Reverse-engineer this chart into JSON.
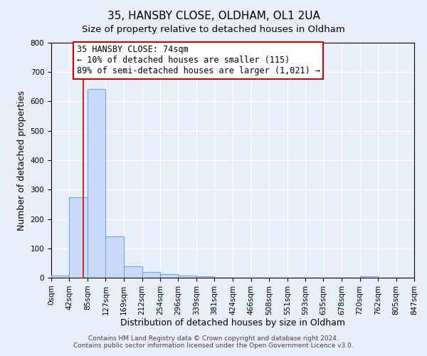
{
  "title": "35, HANSBY CLOSE, OLDHAM, OL1 2UA",
  "subtitle": "Size of property relative to detached houses in Oldham",
  "xlabel": "Distribution of detached houses by size in Oldham",
  "ylabel": "Number of detached properties",
  "bar_edges": [
    0,
    42,
    85,
    127,
    169,
    212,
    254,
    296,
    339,
    381,
    424,
    466,
    508,
    551,
    593,
    635,
    678,
    720,
    762,
    805,
    847
  ],
  "bar_heights": [
    8,
    275,
    642,
    140,
    38,
    20,
    12,
    8,
    5,
    0,
    0,
    0,
    0,
    0,
    0,
    0,
    0,
    4,
    0,
    0
  ],
  "bar_color": "#c9daf8",
  "bar_edge_color": "#6fa8dc",
  "vline_x": 74,
  "vline_color": "#cc0000",
  "annotation_line1": "35 HANSBY CLOSE: 74sqm",
  "annotation_line2": "← 10% of detached houses are smaller (115)",
  "annotation_line3": "89% of semi-detached houses are larger (1,021) →",
  "annotation_box_color": "#ffffff",
  "annotation_box_edge_color": "#cc0000",
  "ylim": [
    0,
    800
  ],
  "yticks": [
    0,
    100,
    200,
    300,
    400,
    500,
    600,
    700,
    800
  ],
  "background_color": "#e8eef7",
  "plot_bg_color": "#e8eef7",
  "footer_line1": "Contains HM Land Registry data © Crown copyright and database right 2024.",
  "footer_line2": "Contains public sector information licensed under the Open Government Licence v3.0.",
  "title_fontsize": 11,
  "subtitle_fontsize": 9.5,
  "axis_label_fontsize": 9,
  "tick_fontsize": 7.5,
  "annotation_fontsize": 8.5,
  "footer_fontsize": 6.5
}
